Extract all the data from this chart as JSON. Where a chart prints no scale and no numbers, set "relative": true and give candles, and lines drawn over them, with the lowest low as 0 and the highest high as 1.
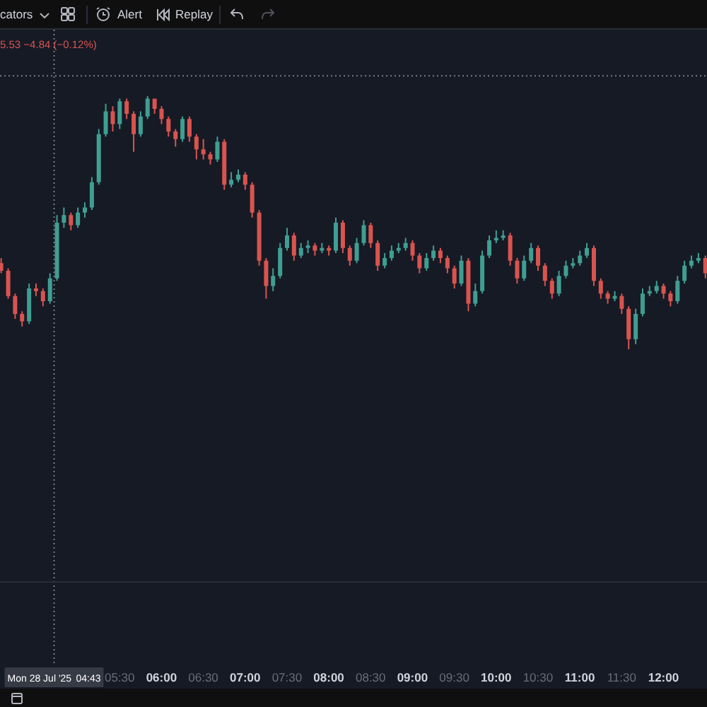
{
  "chart_data": {
    "type": "candlestick",
    "relative": true,
    "annotations": [
      "cators",
      "Alert",
      "Replay",
      "5.53 −4.84 (−0.12%)",
      "Mon 28 Jul '25",
      "04:43"
    ],
    "x": [
      4.083,
      4.167,
      4.25,
      4.333,
      4.417,
      4.5,
      4.583,
      4.667,
      4.75,
      4.833,
      4.917,
      5,
      5.083,
      5.167,
      5.25,
      5.333,
      5.417,
      5.5,
      5.583,
      5.667,
      5.75,
      5.833,
      5.917,
      6,
      6.083,
      6.167,
      6.25,
      6.333,
      6.417,
      6.5,
      6.583,
      6.667,
      6.75,
      6.833,
      6.917,
      7,
      7.083,
      7.167,
      7.25,
      7.333,
      7.417,
      7.5,
      7.583,
      7.667,
      7.75,
      7.833,
      7.917,
      8,
      8.083,
      8.167,
      8.25,
      8.333,
      8.417,
      8.5,
      8.583,
      8.667,
      8.75,
      8.833,
      8.917,
      9,
      9.083,
      9.167,
      9.25,
      9.333,
      9.417,
      9.5,
      9.583,
      9.667,
      9.75,
      9.833,
      9.917,
      10,
      10.083,
      10.167,
      10.25,
      10.333,
      10.417,
      10.5,
      10.583,
      10.667,
      10.75,
      10.833,
      10.917,
      11,
      11.083,
      11.167,
      11.25,
      11.333,
      11.417,
      11.5,
      11.583,
      11.667,
      11.75,
      11.833,
      11.917,
      12,
      12.083,
      12.167,
      12.25,
      12.333,
      12.417,
      12.5
    ],
    "ohlc": [
      [
        0.34,
        0.36,
        0.3,
        0.31
      ],
      [
        0.31,
        0.32,
        0.2,
        0.21
      ],
      [
        0.21,
        0.22,
        0.12,
        0.14
      ],
      [
        0.14,
        0.15,
        0.09,
        0.11
      ],
      [
        0.11,
        0.26,
        0.1,
        0.24
      ],
      [
        0.24,
        0.26,
        0.21,
        0.23
      ],
      [
        0.23,
        0.24,
        0.17,
        0.19
      ],
      [
        0.19,
        0.3,
        0.18,
        0.28
      ],
      [
        0.28,
        0.53,
        0.27,
        0.5
      ],
      [
        0.5,
        0.56,
        0.48,
        0.53
      ],
      [
        0.53,
        0.54,
        0.47,
        0.49
      ],
      [
        0.49,
        0.56,
        0.48,
        0.54
      ],
      [
        0.54,
        0.58,
        0.52,
        0.56
      ],
      [
        0.56,
        0.68,
        0.55,
        0.66
      ],
      [
        0.66,
        0.87,
        0.65,
        0.85
      ],
      [
        0.85,
        0.97,
        0.84,
        0.94
      ],
      [
        0.94,
        0.96,
        0.86,
        0.89
      ],
      [
        0.89,
        0.99,
        0.87,
        0.98
      ],
      [
        0.98,
        0.99,
        0.91,
        0.93
      ],
      [
        0.93,
        0.94,
        0.78,
        0.85
      ],
      [
        0.85,
        0.94,
        0.84,
        0.92
      ],
      [
        0.92,
        1.0,
        0.91,
        0.99
      ],
      [
        0.99,
        0.99,
        0.93,
        0.95
      ],
      [
        0.95,
        0.96,
        0.89,
        0.91
      ],
      [
        0.91,
        0.92,
        0.84,
        0.86
      ],
      [
        0.86,
        0.87,
        0.8,
        0.83
      ],
      [
        0.83,
        0.92,
        0.82,
        0.91
      ],
      [
        0.91,
        0.92,
        0.82,
        0.84
      ],
      [
        0.84,
        0.85,
        0.75,
        0.79
      ],
      [
        0.79,
        0.83,
        0.75,
        0.77
      ],
      [
        0.77,
        0.78,
        0.73,
        0.75
      ],
      [
        0.75,
        0.84,
        0.74,
        0.82
      ],
      [
        0.82,
        0.83,
        0.63,
        0.65
      ],
      [
        0.65,
        0.7,
        0.64,
        0.67
      ],
      [
        0.67,
        0.71,
        0.66,
        0.69
      ],
      [
        0.69,
        0.7,
        0.63,
        0.65
      ],
      [
        0.65,
        0.66,
        0.52,
        0.54
      ],
      [
        0.54,
        0.55,
        0.33,
        0.35
      ],
      [
        0.35,
        0.36,
        0.2,
        0.25
      ],
      [
        0.25,
        0.32,
        0.23,
        0.29
      ],
      [
        0.29,
        0.42,
        0.28,
        0.4
      ],
      [
        0.4,
        0.48,
        0.39,
        0.45
      ],
      [
        0.45,
        0.46,
        0.35,
        0.37
      ],
      [
        0.37,
        0.42,
        0.36,
        0.4
      ],
      [
        0.4,
        0.43,
        0.38,
        0.41
      ],
      [
        0.41,
        0.42,
        0.37,
        0.39
      ],
      [
        0.39,
        0.42,
        0.38,
        0.4
      ],
      [
        0.4,
        0.41,
        0.37,
        0.39
      ],
      [
        0.39,
        0.52,
        0.38,
        0.5
      ],
      [
        0.5,
        0.51,
        0.38,
        0.4
      ],
      [
        0.4,
        0.41,
        0.33,
        0.35
      ],
      [
        0.35,
        0.44,
        0.34,
        0.42
      ],
      [
        0.42,
        0.51,
        0.41,
        0.49
      ],
      [
        0.49,
        0.5,
        0.4,
        0.42
      ],
      [
        0.42,
        0.43,
        0.31,
        0.33
      ],
      [
        0.33,
        0.38,
        0.32,
        0.36
      ],
      [
        0.36,
        0.41,
        0.35,
        0.39
      ],
      [
        0.39,
        0.42,
        0.38,
        0.4
      ],
      [
        0.4,
        0.44,
        0.39,
        0.42
      ],
      [
        0.42,
        0.43,
        0.35,
        0.37
      ],
      [
        0.37,
        0.38,
        0.3,
        0.32
      ],
      [
        0.32,
        0.38,
        0.31,
        0.36
      ],
      [
        0.36,
        0.41,
        0.35,
        0.39
      ],
      [
        0.39,
        0.4,
        0.34,
        0.36
      ],
      [
        0.36,
        0.37,
        0.3,
        0.32
      ],
      [
        0.32,
        0.33,
        0.24,
        0.26
      ],
      [
        0.26,
        0.37,
        0.25,
        0.35
      ],
      [
        0.35,
        0.36,
        0.15,
        0.18
      ],
      [
        0.18,
        0.26,
        0.17,
        0.23
      ],
      [
        0.23,
        0.39,
        0.22,
        0.37
      ],
      [
        0.37,
        0.45,
        0.36,
        0.43
      ],
      [
        0.43,
        0.47,
        0.42,
        0.44
      ],
      [
        0.44,
        0.47,
        0.43,
        0.45
      ],
      [
        0.45,
        0.46,
        0.33,
        0.35
      ],
      [
        0.35,
        0.36,
        0.26,
        0.28
      ],
      [
        0.28,
        0.37,
        0.27,
        0.35
      ],
      [
        0.35,
        0.42,
        0.34,
        0.4
      ],
      [
        0.4,
        0.41,
        0.31,
        0.33
      ],
      [
        0.33,
        0.34,
        0.25,
        0.27
      ],
      [
        0.27,
        0.28,
        0.2,
        0.22
      ],
      [
        0.22,
        0.31,
        0.21,
        0.29
      ],
      [
        0.29,
        0.35,
        0.28,
        0.33
      ],
      [
        0.33,
        0.36,
        0.32,
        0.34
      ],
      [
        0.34,
        0.39,
        0.33,
        0.37
      ],
      [
        0.37,
        0.42,
        0.36,
        0.4
      ],
      [
        0.4,
        0.41,
        0.25,
        0.27
      ],
      [
        0.27,
        0.28,
        0.2,
        0.22
      ],
      [
        0.22,
        0.23,
        0.18,
        0.2
      ],
      [
        0.2,
        0.23,
        0.19,
        0.21
      ],
      [
        0.21,
        0.22,
        0.14,
        0.16
      ],
      [
        0.16,
        0.17,
        0.0,
        0.04
      ],
      [
        0.04,
        0.16,
        0.02,
        0.14
      ],
      [
        0.14,
        0.24,
        0.13,
        0.22
      ],
      [
        0.22,
        0.25,
        0.21,
        0.23
      ],
      [
        0.23,
        0.27,
        0.22,
        0.25
      ],
      [
        0.25,
        0.26,
        0.2,
        0.22
      ],
      [
        0.22,
        0.23,
        0.17,
        0.19
      ],
      [
        0.19,
        0.29,
        0.18,
        0.27
      ],
      [
        0.27,
        0.35,
        0.26,
        0.33
      ],
      [
        0.33,
        0.37,
        0.32,
        0.35
      ],
      [
        0.35,
        0.38,
        0.34,
        0.36
      ],
      [
        0.36,
        0.37,
        0.28,
        0.3
      ]
    ],
    "colors": [
      "#d9544f",
      "#d9544f",
      "#d9544f",
      "#d9544f",
      "#3f9e92",
      "#d9544f",
      "#d9544f",
      "#3f9e92",
      "#3f9e92",
      "#3f9e92",
      "#d9544f",
      "#3f9e92",
      "#3f9e92",
      "#3f9e92",
      "#3f9e92",
      "#3f9e92",
      "#d9544f",
      "#3f9e92",
      "#d9544f",
      "#d9544f",
      "#3f9e92",
      "#3f9e92",
      "#d9544f",
      "#d9544f",
      "#d9544f",
      "#d9544f",
      "#3f9e92",
      "#d9544f",
      "#d9544f",
      "#d9544f",
      "#d9544f",
      "#3f9e92",
      "#d9544f",
      "#3f9e92",
      "#3f9e92",
      "#d9544f",
      "#d9544f",
      "#d9544f",
      "#d9544f",
      "#3f9e92",
      "#3f9e92",
      "#3f9e92",
      "#d9544f",
      "#3f9e92",
      "#3f9e92",
      "#d9544f",
      "#3f9e92",
      "#d9544f",
      "#3f9e92",
      "#d9544f",
      "#d9544f",
      "#3f9e92",
      "#3f9e92",
      "#d9544f",
      "#d9544f",
      "#3f9e92",
      "#3f9e92",
      "#3f9e92",
      "#3f9e92",
      "#d9544f",
      "#d9544f",
      "#3f9e92",
      "#3f9e92",
      "#d9544f",
      "#d9544f",
      "#d9544f",
      "#3f9e92",
      "#d9544f",
      "#3f9e92",
      "#3f9e92",
      "#3f9e92",
      "#3f9e92",
      "#3f9e92",
      "#d9544f",
      "#d9544f",
      "#3f9e92",
      "#3f9e92",
      "#d9544f",
      "#d9544f",
      "#d9544f",
      "#3f9e92",
      "#3f9e92",
      "#3f9e92",
      "#3f9e92",
      "#3f9e92",
      "#d9544f",
      "#d9544f",
      "#d9544f",
      "#3f9e92",
      "#d9544f",
      "#d9544f",
      "#3f9e92",
      "#3f9e92",
      "#3f9e92",
      "#3f9e92",
      "#d9544f",
      "#d9544f",
      "#3f9e92",
      "#3f9e92",
      "#3f9e92",
      "#3f9e92",
      "#d9544f"
    ],
    "xlim": [
      4.07,
      12.52
    ],
    "xticks": [
      {
        "value": 5.5,
        "label": "05:30"
      },
      {
        "value": 6,
        "label": "06:00"
      },
      {
        "value": 6.5,
        "label": "06:30"
      },
      {
        "value": 7,
        "label": "07:00"
      },
      {
        "value": 7.5,
        "label": "07:30"
      },
      {
        "value": 8,
        "label": "08:00"
      },
      {
        "value": 8.5,
        "label": "08:30"
      },
      {
        "value": 9,
        "label": "09:00"
      },
      {
        "value": 9.5,
        "label": "09:30"
      },
      {
        "value": 10,
        "label": "10:00"
      },
      {
        "value": 10.5,
        "label": "10:30"
      },
      {
        "value": 11,
        "label": "11:00"
      },
      {
        "value": 11.5,
        "label": "11:30"
      },
      {
        "value": 12,
        "label": "12:00"
      }
    ],
    "ref_lines": [
      {
        "axis": "x",
        "value": 4.7167,
        "color": "#787b86",
        "line_style": "dotted"
      },
      {
        "axis": "y",
        "value": 1.08,
        "color": "#787b86",
        "line_style": "dotted"
      },
      {
        "axis": "y",
        "value": -0.92,
        "color": "#2a2e39",
        "line_style": "solid"
      }
    ]
  }
}
